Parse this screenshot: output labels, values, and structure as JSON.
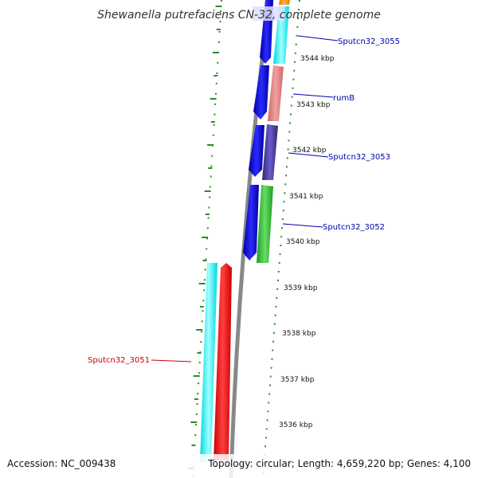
{
  "title": "Shewanella putrefaciens CN-32, complete genome",
  "footer": {
    "accession": "Accession: NC_009438",
    "topology": "Topology: circular; Length: 4,659,220 bp; Genes: 4,100"
  },
  "colors": {
    "backbone": "#888888",
    "ticks": "#2e8b2e",
    "forward_cds": "#0000ee",
    "label_blue": "#0000aa",
    "label_red": "#cc0000"
  },
  "ticks": [
    "3544 kbp",
    "3543 kbp",
    "3542 kbp",
    "3541 kbp",
    "3540 kbp",
    "3539 kbp",
    "3538 kbp",
    "3537 kbp",
    "3536 kbp"
  ],
  "gene_labels": [
    {
      "text": "Sputcn32_3055",
      "color": "#0000aa"
    },
    {
      "text": "rumB",
      "color": "#0000aa"
    },
    {
      "text": "Sputcn32_3053",
      "color": "#0000aa"
    },
    {
      "text": "Sputcn32_3052",
      "color": "#0000aa"
    },
    {
      "text": "Sputcn32_3051",
      "color": "#cc0000"
    }
  ]
}
